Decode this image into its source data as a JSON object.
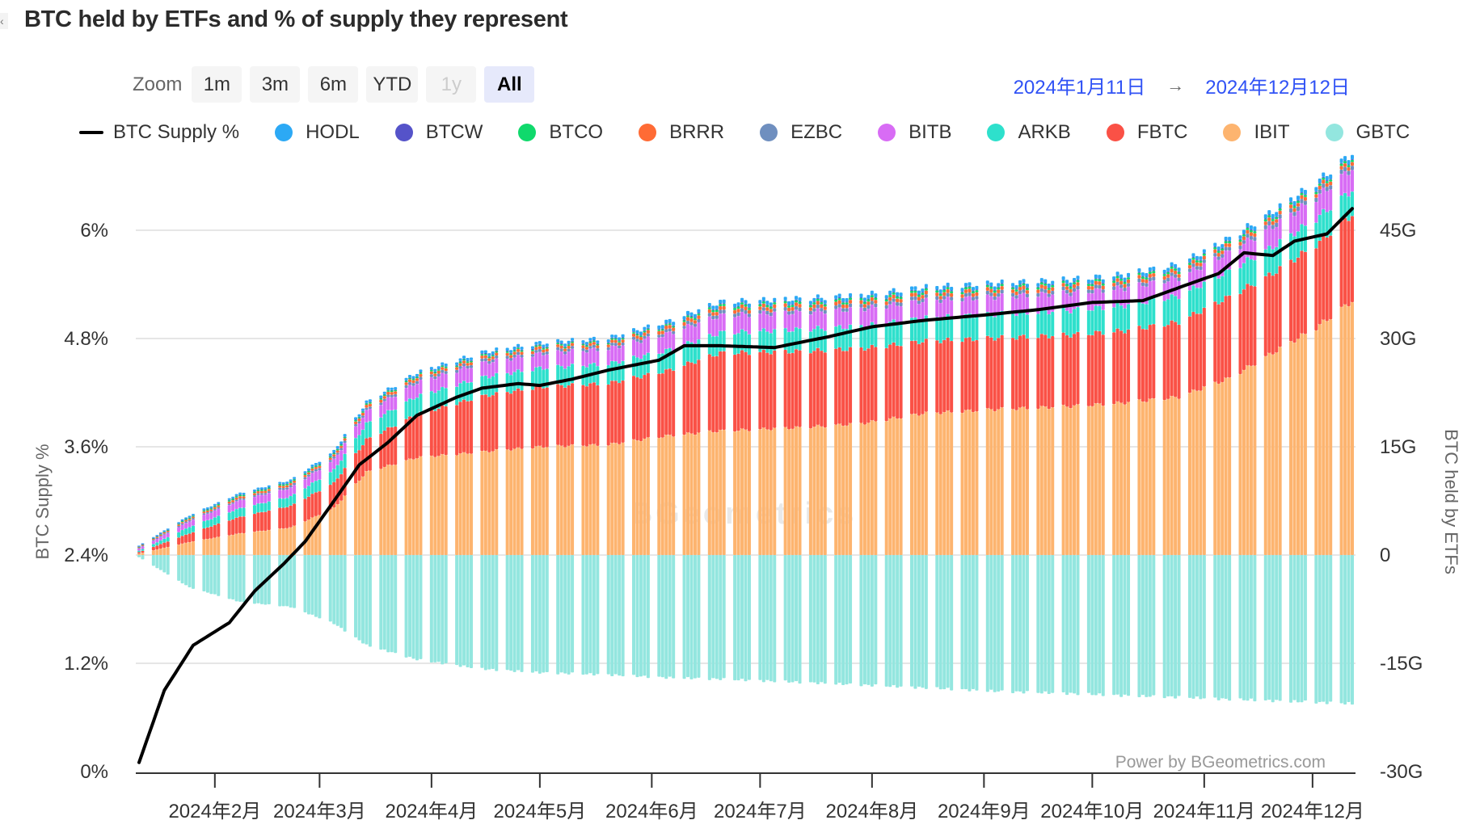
{
  "title": "BTC held by ETFs and % of supply they represent",
  "edge_icon": "close-icon",
  "zoom": {
    "label": "Zoom",
    "buttons": [
      {
        "label": "1m",
        "state": "normal"
      },
      {
        "label": "3m",
        "state": "normal"
      },
      {
        "label": "6m",
        "state": "normal"
      },
      {
        "label": "YTD",
        "state": "normal"
      },
      {
        "label": "1y",
        "state": "disabled"
      },
      {
        "label": "All",
        "state": "active"
      }
    ]
  },
  "range": {
    "from": "2024年1月11日",
    "arrow": "→",
    "to": "2024年12月12日"
  },
  "watermark": "BGeometrics",
  "credit": "Power by BGeometrics.com",
  "chart_data": {
    "type": "bar",
    "stacked": true,
    "title": "BTC held by ETFs and % of supply they represent",
    "x_range": [
      "2024-01-11",
      "2024-12-12"
    ],
    "x_ticks": [
      {
        "date": "2024-02-01",
        "label": "2024年2月"
      },
      {
        "date": "2024-03-01",
        "label": "2024年3月"
      },
      {
        "date": "2024-04-01",
        "label": "2024年4月"
      },
      {
        "date": "2024-05-01",
        "label": "2024年5月"
      },
      {
        "date": "2024-06-01",
        "label": "2024年6月"
      },
      {
        "date": "2024-07-01",
        "label": "2024年7月"
      },
      {
        "date": "2024-08-01",
        "label": "2024年8月"
      },
      {
        "date": "2024-09-01",
        "label": "2024年9月"
      },
      {
        "date": "2024-10-01",
        "label": "2024年10月"
      },
      {
        "date": "2024-11-01",
        "label": "2024年11月"
      },
      {
        "date": "2024-12-01",
        "label": "2024年12月"
      }
    ],
    "y_left": {
      "label": "BTC Supply %",
      "range": [
        0,
        7.2
      ],
      "ticks": [
        0,
        1.2,
        2.4,
        3.6,
        4.8,
        6
      ],
      "tick_labels": [
        "0%",
        "1.2%",
        "2.4%",
        "3.6%",
        "4.8%",
        "6%"
      ]
    },
    "y_right": {
      "label": "BTC held by ETFs",
      "range": [
        -30,
        60
      ],
      "ticks": [
        -30,
        -15,
        0,
        15,
        30,
        45
      ],
      "tick_labels": [
        "-30G",
        "-15G",
        "0",
        "15G",
        "30G",
        "45G"
      ],
      "unit": "G"
    },
    "grid": true,
    "legend_position": "top",
    "knot_dates": [
      "2024-01-11",
      "2024-01-25",
      "2024-02-08",
      "2024-02-22",
      "2024-03-05",
      "2024-03-14",
      "2024-03-28",
      "2024-04-15",
      "2024-05-01",
      "2024-05-20",
      "2024-06-05",
      "2024-06-20",
      "2024-07-10",
      "2024-07-29",
      "2024-08-15",
      "2024-09-05",
      "2024-09-25",
      "2024-10-10",
      "2024-10-25",
      "2024-11-08",
      "2024-11-20",
      "2024-12-02",
      "2024-12-12"
    ],
    "series": [
      {
        "name": "GBTC",
        "color": "#93e6df",
        "axis": "right",
        "values": [
          -0.3,
          -4.5,
          -6.5,
          -7.2,
          -9.5,
          -12.5,
          -14.5,
          -15.8,
          -16.3,
          -16.6,
          -17.0,
          -17.2,
          -17.6,
          -18.0,
          -18.4,
          -18.9,
          -19.2,
          -19.5,
          -19.7,
          -20.0,
          -20.2,
          -20.4,
          -20.6
        ]
      },
      {
        "name": "IBIT",
        "color": "#fdb46f",
        "axis": "right",
        "values": [
          0.2,
          1.8,
          3.0,
          3.8,
          6.5,
          11.5,
          13.5,
          14.3,
          15.0,
          15.3,
          16.5,
          17.2,
          17.6,
          18.2,
          19.6,
          20.2,
          20.6,
          21.1,
          21.9,
          24.5,
          28.0,
          31.5,
          35.2
        ]
      },
      {
        "name": "FBTC",
        "color": "#fa5146",
        "axis": "right",
        "values": [
          0.4,
          3.0,
          5.3,
          6.8,
          10.0,
          16.0,
          19.5,
          22.0,
          23.3,
          23.8,
          25.5,
          28.0,
          28.2,
          28.6,
          29.6,
          30.1,
          30.5,
          31.1,
          32.3,
          35.8,
          39.0,
          43.0,
          47.2
        ]
      },
      {
        "name": "ARKB",
        "color": "#2ee0cc",
        "axis": "right",
        "values": [
          0.6,
          3.9,
          6.5,
          8.1,
          11.8,
          18.2,
          22.0,
          24.6,
          25.9,
          26.5,
          28.3,
          30.8,
          31.2,
          31.7,
          32.8,
          33.4,
          33.9,
          34.6,
          35.9,
          39.4,
          42.7,
          46.6,
          50.6
        ]
      },
      {
        "name": "BITB",
        "color": "#d86cf5",
        "axis": "right",
        "values": [
          0.9,
          4.7,
          7.6,
          9.3,
          13.2,
          19.9,
          23.9,
          26.6,
          27.9,
          28.6,
          30.6,
          33.2,
          33.6,
          34.1,
          35.2,
          35.8,
          36.3,
          37.0,
          38.4,
          42.0,
          45.5,
          49.5,
          53.6
        ]
      },
      {
        "name": "EZBC",
        "color": "#6f8fbf",
        "axis": "right",
        "values": [
          1.0,
          4.9,
          7.8,
          9.6,
          13.5,
          20.2,
          24.3,
          27.0,
          28.3,
          29.0,
          31.0,
          33.7,
          34.1,
          34.6,
          35.7,
          36.3,
          36.8,
          37.5,
          38.9,
          42.5,
          46.1,
          50.1,
          54.2
        ]
      },
      {
        "name": "BRRR",
        "color": "#ff6b35",
        "axis": "right",
        "values": [
          1.1,
          5.1,
          8.1,
          9.9,
          13.8,
          20.6,
          24.7,
          27.4,
          28.7,
          29.4,
          31.5,
          34.2,
          34.6,
          35.1,
          36.2,
          36.8,
          37.3,
          38.0,
          39.4,
          43.0,
          46.6,
          50.6,
          54.7
        ]
      },
      {
        "name": "BTCO",
        "color": "#10d96c",
        "axis": "right",
        "values": [
          1.15,
          5.25,
          8.3,
          10.1,
          14.0,
          20.8,
          24.9,
          27.6,
          28.9,
          29.6,
          31.7,
          34.5,
          34.9,
          35.4,
          36.5,
          37.1,
          37.6,
          38.3,
          39.7,
          43.3,
          46.9,
          50.9,
          55.0
        ]
      },
      {
        "name": "BTCW",
        "color": "#5553c9",
        "axis": "right",
        "values": [
          1.2,
          5.3,
          8.35,
          10.15,
          14.05,
          20.85,
          24.95,
          27.7,
          29.0,
          29.7,
          31.8,
          34.6,
          35.0,
          35.5,
          36.6,
          37.2,
          37.7,
          38.4,
          39.8,
          43.4,
          47.0,
          51.0,
          55.1
        ]
      },
      {
        "name": "HODL",
        "color": "#2ca9f5",
        "axis": "right",
        "values": [
          1.3,
          5.5,
          8.6,
          10.4,
          14.4,
          21.2,
          25.3,
          28.1,
          29.4,
          30.1,
          32.3,
          35.1,
          35.5,
          36.0,
          37.1,
          37.7,
          38.2,
          38.9,
          40.3,
          43.9,
          47.6,
          51.6,
          55.7
        ]
      }
    ],
    "stack_note": "positive series values are cumulative stack tops (G)",
    "line": {
      "name": "BTC Supply %",
      "color": "#000000",
      "axis": "left",
      "dates": [
        "2024-01-11",
        "2024-01-18",
        "2024-01-26",
        "2024-02-05",
        "2024-02-12",
        "2024-02-20",
        "2024-02-26",
        "2024-03-05",
        "2024-03-12",
        "2024-03-20",
        "2024-03-28",
        "2024-04-08",
        "2024-04-15",
        "2024-04-25",
        "2024-05-01",
        "2024-05-10",
        "2024-05-20",
        "2024-06-03",
        "2024-06-10",
        "2024-06-20",
        "2024-07-05",
        "2024-07-20",
        "2024-08-01",
        "2024-08-15",
        "2024-09-01",
        "2024-09-16",
        "2024-10-01",
        "2024-10-15",
        "2024-10-31",
        "2024-11-05",
        "2024-11-12",
        "2024-11-20",
        "2024-11-26",
        "2024-12-05",
        "2024-12-12"
      ],
      "values": [
        0.1,
        0.9,
        1.4,
        1.65,
        2.0,
        2.3,
        2.55,
        3.0,
        3.4,
        3.65,
        3.95,
        4.15,
        4.25,
        4.3,
        4.28,
        4.35,
        4.45,
        4.56,
        4.72,
        4.72,
        4.7,
        4.82,
        4.93,
        5.0,
        5.06,
        5.12,
        5.2,
        5.22,
        5.45,
        5.52,
        5.75,
        5.72,
        5.88,
        5.96,
        6.24
      ]
    }
  },
  "legend": [
    {
      "name": "BTC Supply %",
      "type": "line",
      "color": "#000000"
    },
    {
      "name": "HODL",
      "type": "dot",
      "color": "#2ca9f5"
    },
    {
      "name": "BTCW",
      "type": "dot",
      "color": "#5553c9"
    },
    {
      "name": "BTCO",
      "type": "dot",
      "color": "#10d96c"
    },
    {
      "name": "BRRR",
      "type": "dot",
      "color": "#ff6b35"
    },
    {
      "name": "EZBC",
      "type": "dot",
      "color": "#6f8fbf"
    },
    {
      "name": "BITB",
      "type": "dot",
      "color": "#d86cf5"
    },
    {
      "name": "ARKB",
      "type": "dot",
      "color": "#2ee0cc"
    },
    {
      "name": "FBTC",
      "type": "dot",
      "color": "#fa5146"
    },
    {
      "name": "IBIT",
      "type": "dot",
      "color": "#fdb46f"
    },
    {
      "name": "GBTC",
      "type": "dot",
      "color": "#93e6df"
    }
  ]
}
